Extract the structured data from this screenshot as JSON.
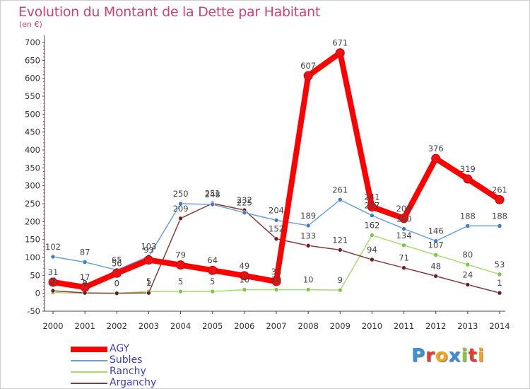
{
  "title": "Evolution du Montant de la Dette par Habitant",
  "subtitle": "(en €)",
  "logo": {
    "text": "Proxiti",
    "letters": [
      {
        "ch": "P",
        "color": "#3b8fd8"
      },
      {
        "ch": "r",
        "color": "#e63c2f"
      },
      {
        "ch": "o",
        "color": "#f2a51b"
      },
      {
        "ch": "x",
        "color": "#3b8fd8"
      },
      {
        "ch": "i",
        "color": "#8cc63f"
      },
      {
        "ch": "t",
        "color": "#e63c2f"
      },
      {
        "ch": "i",
        "color": "#f2a51b"
      }
    ]
  },
  "chart_data": {
    "type": "line",
    "x": [
      "2000",
      "2001",
      "2002",
      "2003",
      "2004",
      "2005",
      "2006",
      "2007",
      "2008",
      "2009",
      "2010",
      "2011",
      "2012",
      "2013",
      "2014"
    ],
    "ylim": [
      -50,
      700
    ],
    "yticks": [
      -50,
      0,
      50,
      100,
      150,
      200,
      250,
      300,
      350,
      400,
      450,
      500,
      550,
      600,
      650,
      700
    ],
    "grid": false,
    "legend_position": "bottom-left",
    "series": [
      {
        "name": "AGY",
        "color": "#ff0000",
        "marker": "#ee1111",
        "width": 8,
        "r": 6,
        "values": [
          31,
          17,
          56,
          93,
          79,
          64,
          49,
          33,
          607,
          671,
          241,
          209,
          376,
          319,
          261
        ]
      },
      {
        "name": "Subles",
        "color": "#6a9fd8",
        "marker": "#3d7ccc",
        "width": 1.5,
        "r": 3,
        "values": [
          102,
          87,
          65,
          103,
          250,
          248,
          225,
          204,
          189,
          261,
          217,
          180,
          146,
          188,
          188
        ]
      },
      {
        "name": "Ranchy",
        "color": "#a6de6e",
        "marker": "#78c83e",
        "width": 1.5,
        "r": 3,
        "values": [
          2,
          0,
          0,
          5,
          5,
          5,
          10,
          10,
          10,
          9,
          162,
          134,
          107,
          80,
          53
        ]
      },
      {
        "name": "Arganchy",
        "color": "#8a3a3a",
        "marker": "#6a1f1f",
        "width": 1.5,
        "r": 3,
        "values": [
          7,
          1,
          0,
          1,
          209,
          251,
          232,
          152,
          133,
          121,
          94,
          71,
          48,
          24,
          1
        ]
      }
    ]
  }
}
